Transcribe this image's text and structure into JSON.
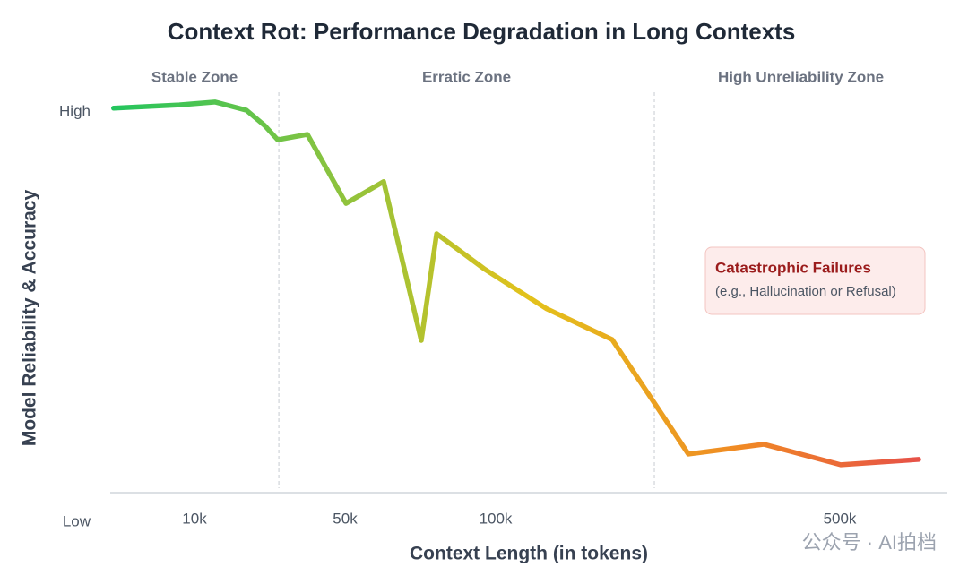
{
  "chart_data": {
    "type": "line",
    "title": "Context Rot: Performance Degradation in Long Contexts",
    "x_label": "Context Length (in tokens)",
    "y_label": "Model Reliability & Accuracy",
    "xlim": [
      0,
      625000
    ],
    "xticks": [
      {
        "value": 10000,
        "label": "10k"
      },
      {
        "value": 50000,
        "label": "50k"
      },
      {
        "value": 100000,
        "label": "100k"
      },
      {
        "value": 500000,
        "label": "500k"
      }
    ],
    "ylim": [
      0,
      105
    ],
    "yticks": [
      {
        "value": 100,
        "label": "High"
      },
      {
        "value": 0,
        "label": "Low"
      }
    ],
    "zone_boundaries": [
      32400,
      284400
    ],
    "zone_labels": [
      "Stable Zone",
      "Erratic Zone",
      "High Unreliability Zone"
    ],
    "series": [
      {
        "colors": [
          "#22c55e",
          "#84c341",
          "#e3c21b",
          "#f08a24",
          "#e5484d"
        ],
        "x": [
          400,
          8200,
          15500,
          23800,
          28600,
          32100,
          40000,
          50300,
          62800,
          75300,
          80400,
          96100,
          159400,
          235400,
          324000,
          411500,
          501000,
          591700
        ],
        "values": [
          100.9,
          101.7,
          102.4,
          100.4,
          96.7,
          93.2,
          94.5,
          77.7,
          83.0,
          44.3,
          70.3,
          61.8,
          52.0,
          44.5,
          16.6,
          19.0,
          14.0,
          15.3
        ]
      }
    ],
    "annotation": {
      "title": "Catastrophic Failures",
      "text": "(e.g., Hallucination or Refusal)"
    },
    "watermark": "公众号 · AI拍档"
  }
}
